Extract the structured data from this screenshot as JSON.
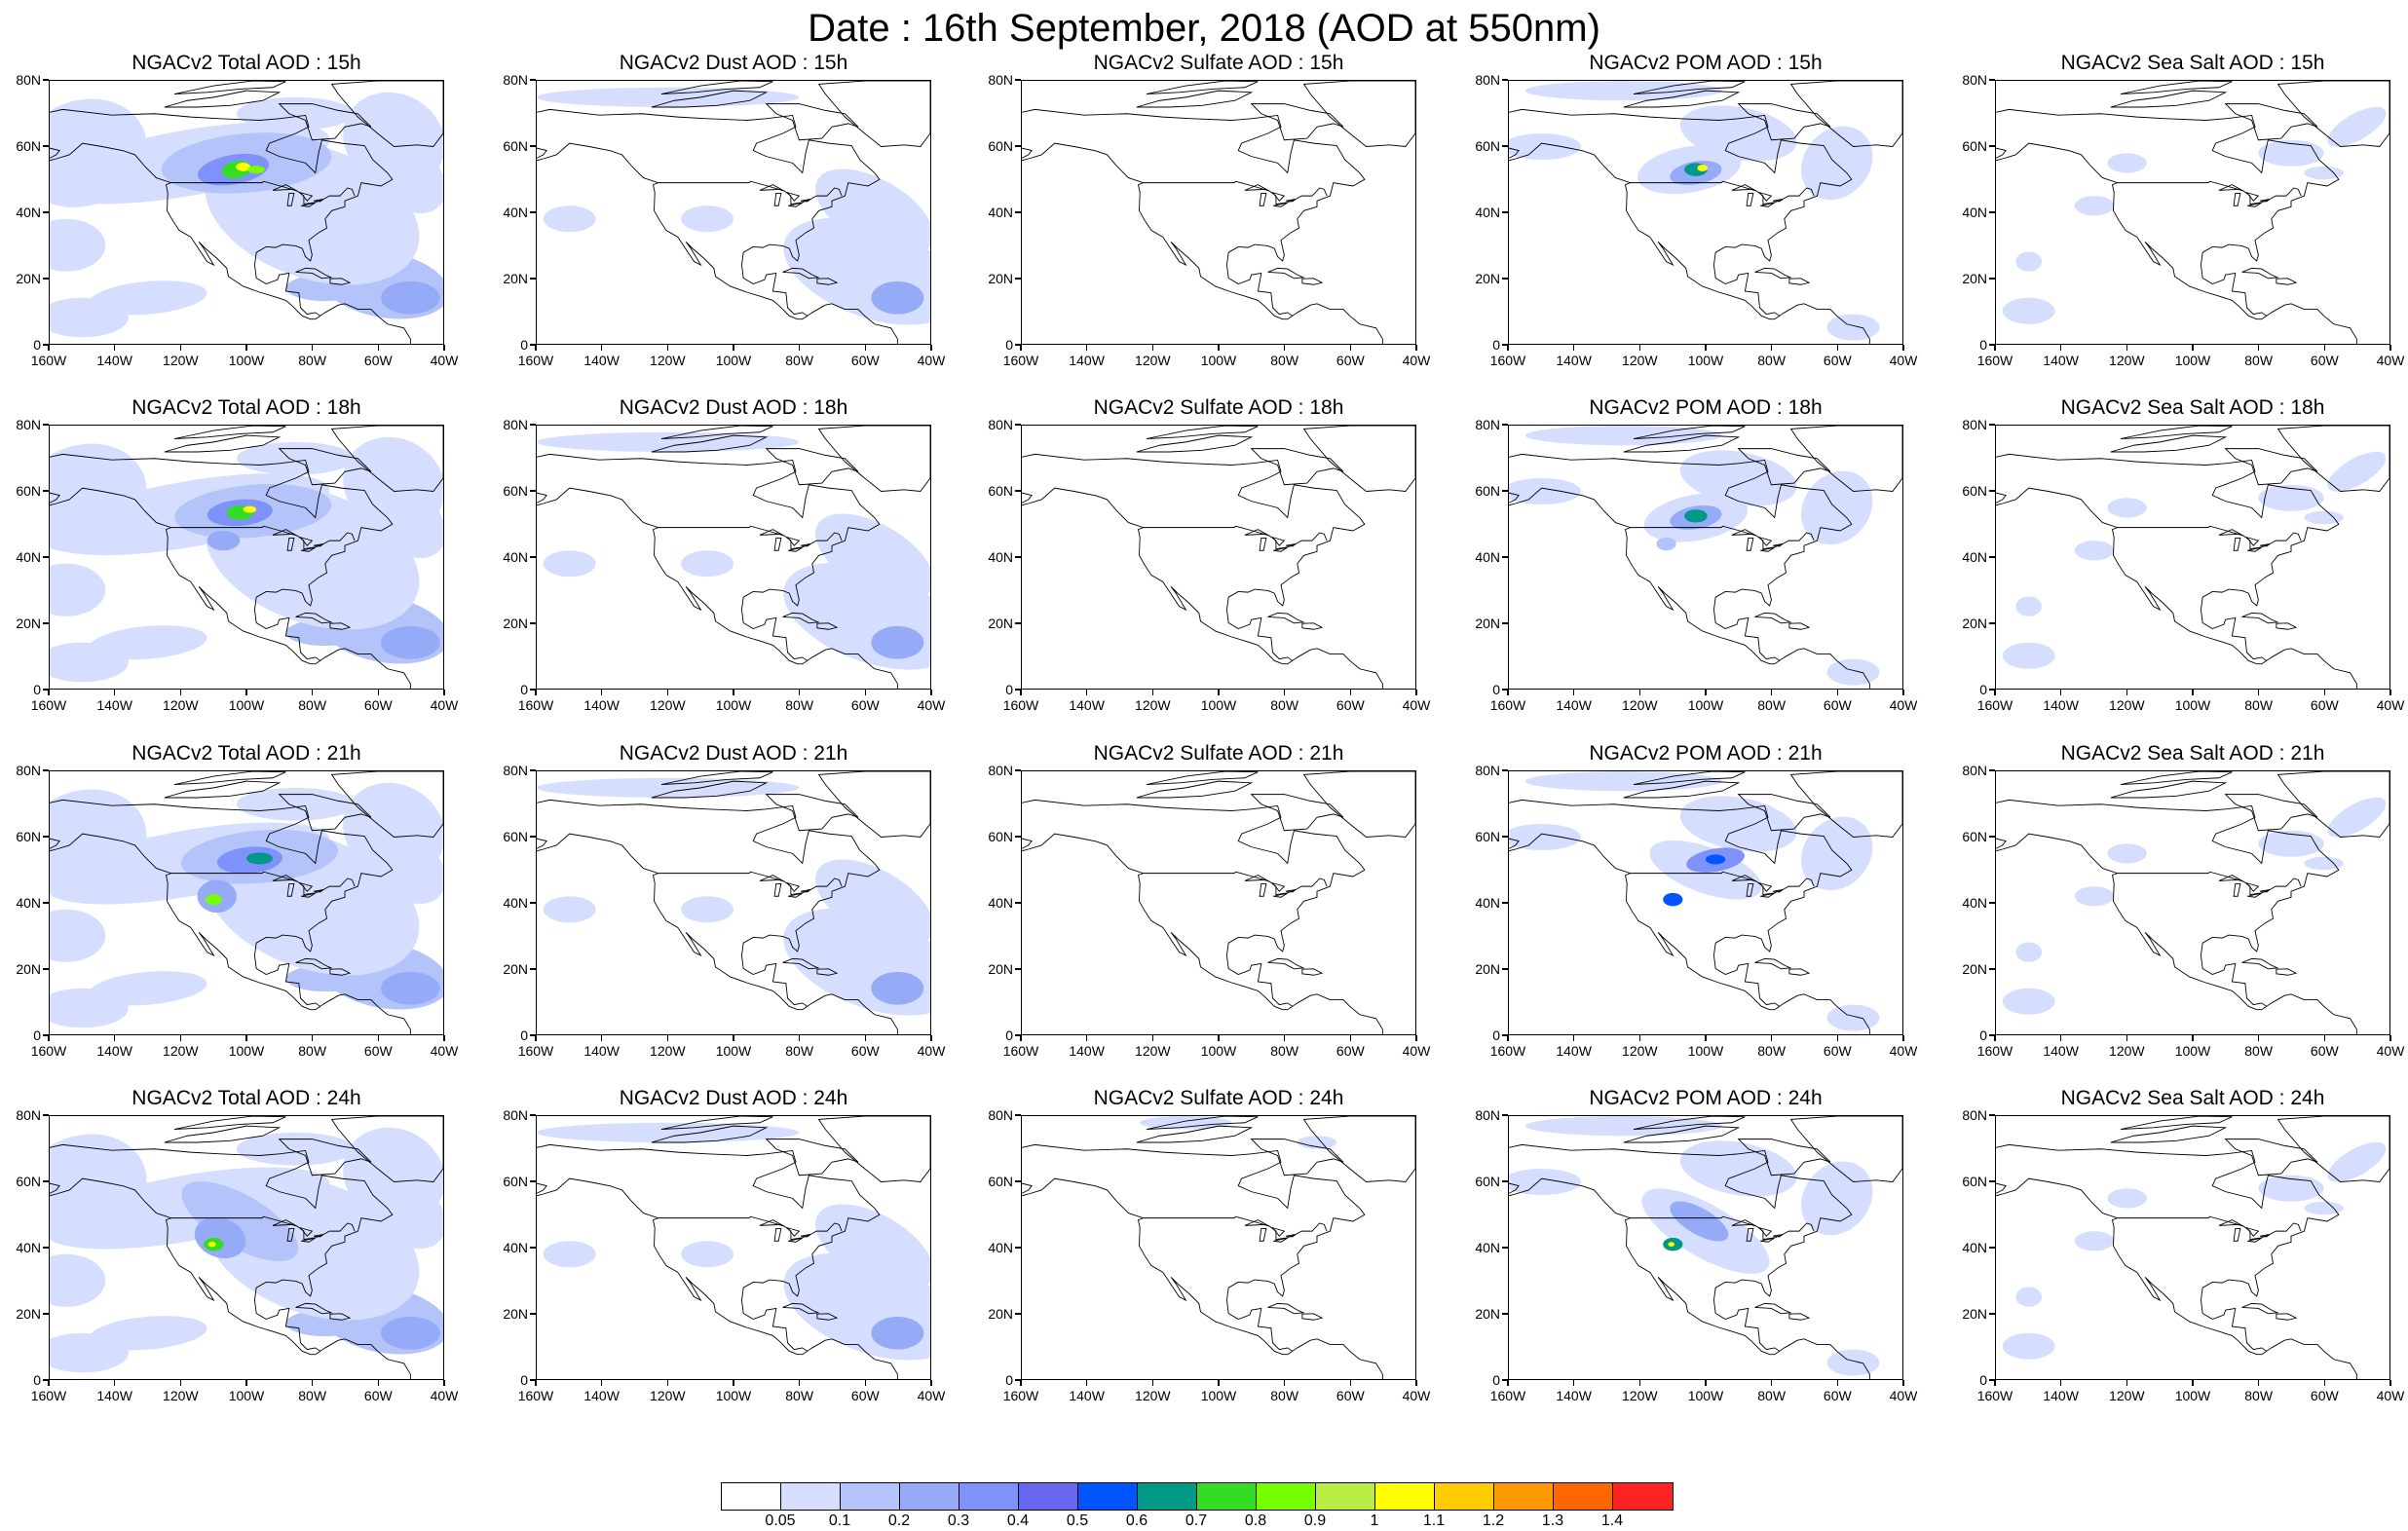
{
  "title": "Date : 16th September, 2018 (AOD at 550nm)",
  "lat_ticks": [
    "80N",
    "60N",
    "40N",
    "20N",
    "0"
  ],
  "lon_ticks": [
    "160W",
    "140W",
    "120W",
    "100W",
    "80W",
    "60W",
    "40W"
  ],
  "rows": [
    [
      "NGACv2 Total AOD : 15h",
      "NGACv2 Dust AOD : 15h",
      "NGACv2 Sulfate AOD : 15h",
      "NGACv2 POM AOD : 15h",
      "NGACv2 Sea Salt AOD : 15h"
    ],
    [
      "NGACv2 Total AOD : 18h",
      "NGACv2 Dust AOD : 18h",
      "NGACv2 Sulfate AOD : 18h",
      "NGACv2 POM AOD : 18h",
      "NGACv2 Sea Salt AOD : 18h"
    ],
    [
      "NGACv2 Total AOD : 21h",
      "NGACv2 Dust AOD : 21h",
      "NGACv2 Sulfate AOD : 21h",
      "NGACv2 POM AOD : 21h",
      "NGACv2 Sea Salt AOD : 21h"
    ],
    [
      "NGACv2 Total AOD : 24h",
      "NGACv2 Dust AOD : 24h",
      "NGACv2 Sulfate AOD : 24h",
      "NGACv2 POM AOD : 24h",
      "NGACv2 Sea Salt  AOD : 24h"
    ]
  ],
  "colorbar": {
    "colors": [
      "#ffffff",
      "#d5deff",
      "#b4c3fa",
      "#96abf8",
      "#7f91fa",
      "#6666ee",
      "#0055ff",
      "#009988",
      "#33dd22",
      "#77ff00",
      "#bbee44",
      "#ffff00",
      "#ffcc00",
      "#ff9900",
      "#ff6600",
      "#ff2222"
    ],
    "labels": [
      "0.05",
      "0.1",
      "0.2",
      "0.3",
      "0.4",
      "0.5",
      "0.6",
      "0.7",
      "0.8",
      "0.9",
      "1",
      "1.1",
      "1.2",
      "1.3",
      "1.4"
    ]
  }
}
